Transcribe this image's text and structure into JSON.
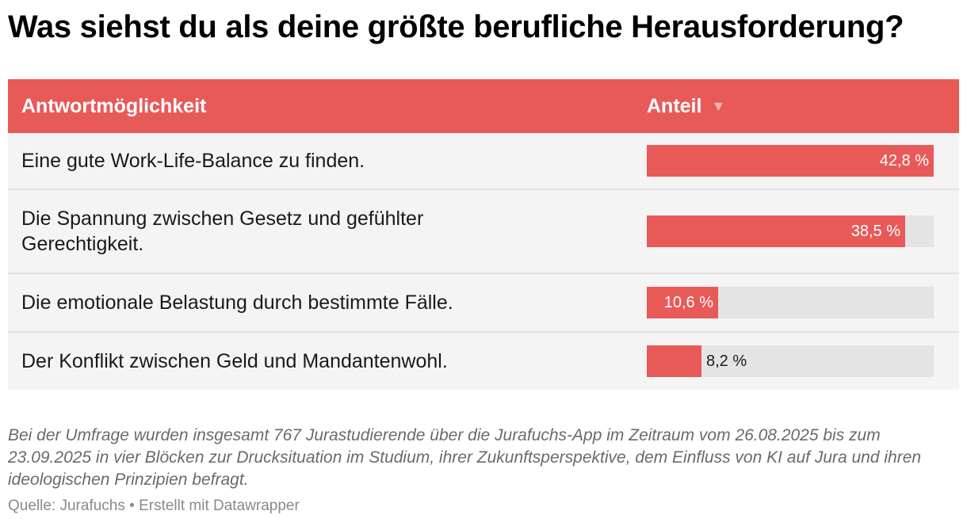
{
  "title": "Was siehst du als deine größte berufliche Herausforderung?",
  "table": {
    "header_answer": "Antwortmöglichkeit",
    "header_share": "Anteil",
    "sort_icon": "sort-descending-icon"
  },
  "chart_data": {
    "type": "table",
    "columns": [
      "Antwortmöglichkeit",
      "Anteil"
    ],
    "rows": [
      {
        "answer": "Eine gute Work-Life-Balance zu finden.",
        "value": 42.8,
        "label": "42,8 %"
      },
      {
        "answer": "Die Spannung zwischen Gesetz und gefühlter Gerechtigkeit.",
        "value": 38.5,
        "label": "38,5 %"
      },
      {
        "answer": "Die emotionale Belastung durch bestimmte Fälle.",
        "value": 10.6,
        "label": "10,6 %"
      },
      {
        "answer": "Der Konflikt zwischen Geld und Mandantenwohl.",
        "value": 8.2,
        "label": "8,2 %"
      }
    ],
    "value_max": 42.8,
    "bar_color": "#e85a58",
    "track_color": "#e4e4e4"
  },
  "note": "Bei der Umfrage wurden insgesamt 767 Jurastudierende über die Jurafuchs-App im Zeitraum vom 26.08.2025 bis zum 23.09.2025 in vier Blöcken zur Drucksituation im Studium, ihrer Zukunftsperspektive, dem Einfluss von KI auf Jura und ihren ideologischen Prinzipien befragt.",
  "source": "Quelle: Jurafuchs • Erstellt mit Datawrapper"
}
